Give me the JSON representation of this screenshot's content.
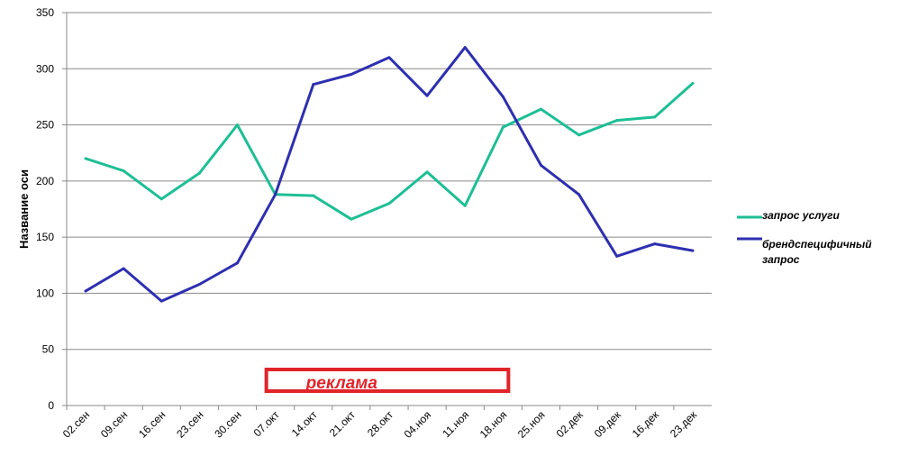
{
  "chart_data": {
    "type": "line",
    "title": "",
    "xlabel": "",
    "ylabel": "Название оси",
    "ylim": [
      0,
      350
    ],
    "yticks": [
      0,
      50,
      100,
      150,
      200,
      250,
      300,
      350
    ],
    "grid": true,
    "legend_position": "right",
    "categories": [
      "02.сен",
      "09.сен",
      "16.сен",
      "23.сен",
      "30.сен",
      "07.окт",
      "14.окт",
      "21.окт",
      "28.окт",
      "04.ноя",
      "11.ноя",
      "18.ноя",
      "25.ноя",
      "02.дек",
      "09.дек",
      "16.дек",
      "23.дек"
    ],
    "series": [
      {
        "name": "запрос услуги",
        "color": "#1dbf94",
        "values": [
          220,
          209,
          184,
          207,
          250,
          188,
          187,
          166,
          180,
          208,
          178,
          248,
          264,
          241,
          254,
          257,
          287
        ]
      },
      {
        "name": "брендспецифичный запрос",
        "color": "#2e2fb0",
        "values": [
          102,
          122,
          93,
          108,
          127,
          188,
          286,
          295,
          310,
          276,
          319,
          275,
          214,
          188,
          133,
          144,
          138
        ]
      }
    ],
    "annotation": {
      "text": "реклама",
      "color": "#e0242a",
      "from_category": "07.окт",
      "to_category": "18.ноя"
    }
  }
}
